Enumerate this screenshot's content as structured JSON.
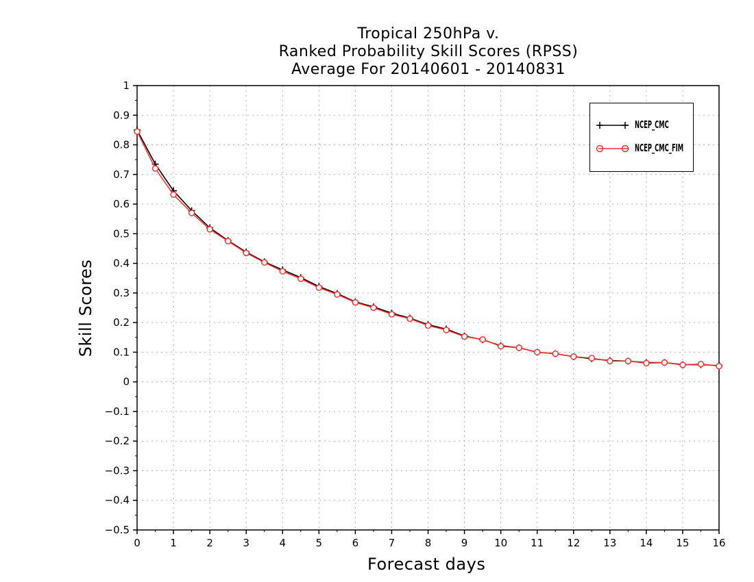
{
  "chart_data": {
    "type": "line",
    "title_lines": [
      "Tropical 250hPa v.",
      "Ranked Probability Skill Scores (RPSS)",
      "Average For 20140601 - 20140831"
    ],
    "xlabel": "Forecast days",
    "ylabel": "Skill Scores",
    "xlim": [
      0,
      16
    ],
    "ylim": [
      -0.5,
      1
    ],
    "xticks": [
      "0",
      "1",
      "2",
      "3",
      "4",
      "5",
      "6",
      "7",
      "8",
      "9",
      "10",
      "11",
      "12",
      "13",
      "14",
      "15",
      "16"
    ],
    "yticks": [
      "1",
      "0.9",
      "0.8",
      "0.7",
      "0.6",
      "0.5",
      "0.4",
      "0.3",
      "0.2",
      "0.1",
      "0",
      "-0.1",
      "-0.2",
      "-0.3",
      "-0.4",
      "-0.5"
    ],
    "grid": true,
    "legend_position": "top-right",
    "x": [
      0,
      0.5,
      1,
      1.5,
      2,
      2.5,
      3,
      3.5,
      4,
      4.5,
      5,
      5.5,
      6,
      6.5,
      7,
      7.5,
      8,
      8.5,
      9,
      9.5,
      10,
      10.5,
      11,
      11.5,
      12,
      12.5,
      13,
      13.5,
      14,
      14.5,
      15,
      15.5,
      16
    ],
    "series": [
      {
        "name": "NCEP_CMC",
        "color": "#000000",
        "marker": "plus",
        "values": [
          0.85,
          0.735,
          0.645,
          0.578,
          0.52,
          0.477,
          0.438,
          0.405,
          0.378,
          0.352,
          0.322,
          0.298,
          0.27,
          0.253,
          0.232,
          0.215,
          0.193,
          0.178,
          0.155,
          0.142,
          0.122,
          0.115,
          0.1,
          0.095,
          0.085,
          0.078,
          0.072,
          0.07,
          0.065,
          0.065,
          0.058,
          0.058,
          0.055
        ]
      },
      {
        "name": "NCEP_CMC_FIM",
        "color": "#ff3030",
        "marker": "circle",
        "values": [
          0.845,
          0.72,
          0.632,
          0.57,
          0.515,
          0.475,
          0.435,
          0.403,
          0.373,
          0.348,
          0.318,
          0.295,
          0.268,
          0.25,
          0.228,
          0.213,
          0.19,
          0.175,
          0.153,
          0.143,
          0.12,
          0.115,
          0.1,
          0.095,
          0.085,
          0.08,
          0.07,
          0.07,
          0.063,
          0.065,
          0.057,
          0.06,
          0.053
        ]
      }
    ]
  }
}
